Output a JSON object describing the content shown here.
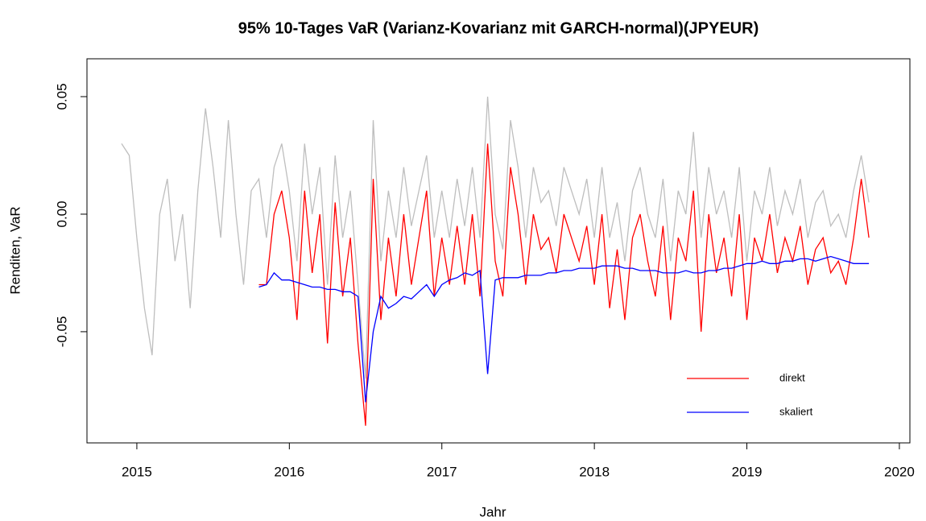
{
  "chart_data": {
    "type": "line",
    "title": "95% 10-Tages VaR (Varianz-Kovarianz mit GARCH-normal)(JPYEUR)",
    "xlabel": "Jahr",
    "ylabel": "Renditen, VaR",
    "xlim": [
      2014.673,
      2020.069
    ],
    "ylim": [
      -0.0973,
      0.0661
    ],
    "xticks": [
      2015,
      2016,
      2017,
      2018,
      2019,
      2020
    ],
    "yticks": [
      -0.05,
      {
        "value": 0,
        "label": "0.00"
      },
      0.05
    ],
    "legend": "bottomright",
    "x": [
      2014.9,
      2014.95,
      2015.0,
      2015.05,
      2015.1,
      2015.15,
      2015.2,
      2015.25,
      2015.3,
      2015.35,
      2015.4,
      2015.45,
      2015.5,
      2015.55,
      2015.6,
      2015.65,
      2015.7,
      2015.75,
      2015.8,
      2015.85,
      2015.9,
      2015.95,
      2016.0,
      2016.05,
      2016.1,
      2016.15,
      2016.2,
      2016.25,
      2016.3,
      2016.35,
      2016.4,
      2016.45,
      2016.5,
      2016.55,
      2016.6,
      2016.65,
      2016.7,
      2016.75,
      2016.8,
      2016.85,
      2016.9,
      2016.95,
      2017.0,
      2017.05,
      2017.1,
      2017.15,
      2017.2,
      2017.25,
      2017.3,
      2017.35,
      2017.4,
      2017.45,
      2017.5,
      2017.55,
      2017.6,
      2017.65,
      2017.7,
      2017.75,
      2017.8,
      2017.85,
      2017.9,
      2017.95,
      2018.0,
      2018.05,
      2018.1,
      2018.15,
      2018.2,
      2018.25,
      2018.3,
      2018.35,
      2018.4,
      2018.45,
      2018.5,
      2018.55,
      2018.6,
      2018.65,
      2018.7,
      2018.75,
      2018.8,
      2018.85,
      2018.9,
      2018.95,
      2019.0,
      2019.05,
      2019.1,
      2019.15,
      2019.2,
      2019.25,
      2019.3,
      2019.35,
      2019.4,
      2019.45,
      2019.5,
      2019.55,
      2019.6,
      2019.65,
      2019.7,
      2019.75,
      2019.8
    ],
    "series": [
      {
        "color": "#bebebe",
        "values": [
          0.03,
          0.025,
          -0.01,
          -0.04,
          -0.06,
          0.0,
          0.015,
          -0.02,
          0.0,
          -0.04,
          0.01,
          0.045,
          0.02,
          -0.01,
          0.04,
          0.0,
          -0.03,
          0.01,
          0.015,
          -0.01,
          0.02,
          0.03,
          0.01,
          -0.02,
          0.03,
          0.0,
          0.02,
          -0.03,
          0.025,
          -0.01,
          0.01,
          -0.03,
          -0.07,
          0.04,
          -0.02,
          0.01,
          -0.01,
          0.02,
          -0.005,
          0.01,
          0.025,
          -0.01,
          0.01,
          -0.01,
          0.015,
          -0.005,
          0.02,
          -0.01,
          0.05,
          0.0,
          -0.015,
          0.04,
          0.02,
          -0.01,
          0.02,
          0.005,
          0.01,
          -0.005,
          0.02,
          0.01,
          0.0,
          0.015,
          -0.01,
          0.02,
          -0.01,
          0.005,
          -0.02,
          0.01,
          0.02,
          0.0,
          -0.01,
          0.015,
          -0.02,
          0.01,
          0.0,
          0.035,
          -0.01,
          0.02,
          0.0,
          0.01,
          -0.01,
          0.02,
          -0.02,
          0.01,
          0.0,
          0.02,
          -0.005,
          0.01,
          0.0,
          0.015,
          -0.01,
          0.005,
          0.01,
          -0.005,
          0.0,
          -0.01,
          0.01,
          0.025,
          0.005
        ]
      },
      {
        "name": "direkt",
        "color": "#ff0000",
        "values": [
          null,
          null,
          null,
          null,
          null,
          null,
          null,
          null,
          null,
          null,
          null,
          null,
          null,
          null,
          null,
          null,
          null,
          null,
          -0.03,
          -0.03,
          0.0,
          0.01,
          -0.01,
          -0.045,
          0.01,
          -0.025,
          0.0,
          -0.055,
          0.005,
          -0.035,
          -0.01,
          -0.055,
          -0.09,
          0.015,
          -0.045,
          -0.01,
          -0.035,
          0.0,
          -0.03,
          -0.01,
          0.01,
          -0.035,
          -0.01,
          -0.03,
          -0.005,
          -0.03,
          0.0,
          -0.035,
          0.03,
          -0.02,
          -0.035,
          0.02,
          0.0,
          -0.03,
          0.0,
          -0.015,
          -0.01,
          -0.025,
          0.0,
          -0.01,
          -0.02,
          -0.005,
          -0.03,
          0.0,
          -0.04,
          -0.015,
          -0.045,
          -0.01,
          0.0,
          -0.02,
          -0.035,
          -0.005,
          -0.045,
          -0.01,
          -0.02,
          0.01,
          -0.05,
          0.0,
          -0.025,
          -0.01,
          -0.035,
          0.0,
          -0.045,
          -0.01,
          -0.02,
          0.0,
          -0.025,
          -0.01,
          -0.02,
          -0.005,
          -0.03,
          -0.015,
          -0.01,
          -0.025,
          -0.02,
          -0.03,
          -0.01,
          0.015,
          -0.01
        ]
      },
      {
        "name": "skaliert",
        "color": "#0000ff",
        "values": [
          null,
          null,
          null,
          null,
          null,
          null,
          null,
          null,
          null,
          null,
          null,
          null,
          null,
          null,
          null,
          null,
          null,
          null,
          -0.031,
          -0.03,
          -0.025,
          -0.028,
          -0.028,
          -0.029,
          -0.03,
          -0.031,
          -0.031,
          -0.032,
          -0.032,
          -0.033,
          -0.033,
          -0.035,
          -0.08,
          -0.05,
          -0.035,
          -0.04,
          -0.038,
          -0.035,
          -0.036,
          -0.033,
          -0.03,
          -0.035,
          -0.03,
          -0.028,
          -0.027,
          -0.025,
          -0.026,
          -0.024,
          -0.068,
          -0.028,
          -0.027,
          -0.027,
          -0.027,
          -0.026,
          -0.026,
          -0.026,
          -0.025,
          -0.025,
          -0.024,
          -0.024,
          -0.023,
          -0.023,
          -0.023,
          -0.022,
          -0.022,
          -0.022,
          -0.023,
          -0.023,
          -0.024,
          -0.024,
          -0.024,
          -0.025,
          -0.025,
          -0.025,
          -0.024,
          -0.025,
          -0.025,
          -0.024,
          -0.024,
          -0.023,
          -0.023,
          -0.022,
          -0.021,
          -0.021,
          -0.02,
          -0.021,
          -0.021,
          -0.02,
          -0.02,
          -0.019,
          -0.019,
          -0.02,
          -0.019,
          -0.018,
          -0.019,
          -0.02,
          -0.021,
          -0.021,
          -0.021
        ]
      }
    ]
  }
}
